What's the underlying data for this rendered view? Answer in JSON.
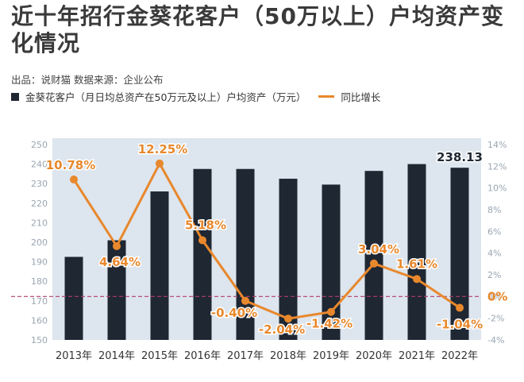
{
  "title": "近十年招行金葵花客户（50万以上）户均资产变化情况",
  "source_text": "出品：说财猫  数据来源：企业公布",
  "colors": {
    "bar": "#1f2733",
    "line": "#e8882c",
    "plot_bg": "#dde5ee",
    "zero_line": "#b0406a",
    "axis_text": "#9aa6b2",
    "title": "#3a3a3a"
  },
  "chart_data": {
    "type": "bar",
    "categories": [
      "2013年",
      "2014年",
      "2015年",
      "2016年",
      "2017年",
      "2018年",
      "2019年",
      "2020年",
      "2021年",
      "2022年"
    ],
    "series": [
      {
        "name": "金葵花客户（月日均总资产在50万元及以上）户均资产（万元）",
        "type": "bar",
        "axis": "left",
        "values": [
          192.5,
          201,
          226,
          237.5,
          237.5,
          232.5,
          229.5,
          236.5,
          240,
          238.13
        ]
      },
      {
        "name": "同比增长",
        "type": "line",
        "axis": "right",
        "values": [
          10.78,
          4.64,
          12.25,
          5.18,
          -0.4,
          -2.04,
          -1.42,
          3.04,
          1.61,
          -1.04
        ],
        "labels": [
          "10.78%",
          "4.64%",
          "12.25%",
          "5.18%",
          "-0.40%",
          "-2.04%",
          "-1.42%",
          "3.04%",
          "1.61%",
          "-1.04%"
        ]
      }
    ],
    "bar_annotation": {
      "index": 9,
      "text": "238.13"
    },
    "left_axis": {
      "ylim": [
        150,
        250
      ],
      "ticks": [
        "150",
        "160",
        "170",
        "180",
        "190",
        "200",
        "210",
        "220",
        "230",
        "240",
        "250"
      ]
    },
    "right_axis": {
      "ylim": [
        -4,
        14
      ],
      "ticks": [
        "-4%",
        "-2%",
        "0%",
        "2%",
        "4%",
        "6%",
        "8%",
        "10%",
        "12%",
        "14%"
      ],
      "zero_label": "0%"
    }
  }
}
